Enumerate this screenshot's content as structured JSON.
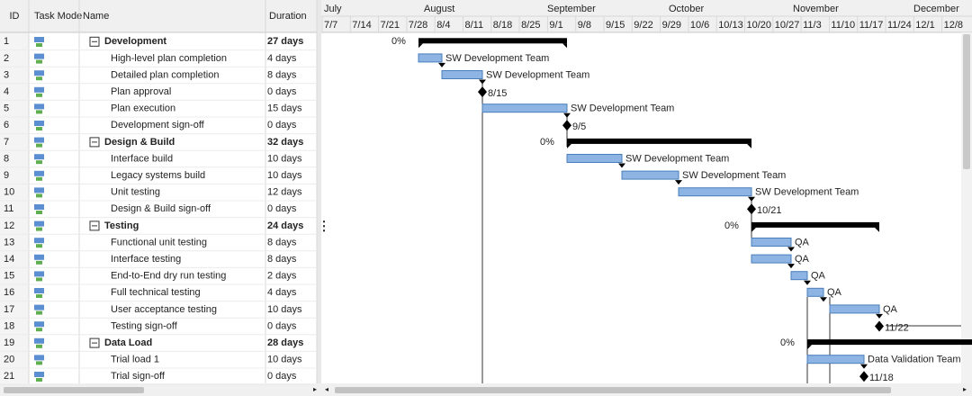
{
  "columns": [
    "ID",
    "Task Mode",
    "Name",
    "Duration"
  ],
  "timeline": {
    "months": [
      "July",
      "August",
      "September",
      "October",
      "November",
      "December"
    ],
    "weeks": [
      "7/7",
      "7/14",
      "7/21",
      "7/28",
      "8/4",
      "8/11",
      "8/18",
      "8/25",
      "9/1",
      "9/8",
      "9/15",
      "9/22",
      "9/29",
      "10/6",
      "10/13",
      "10/20",
      "10/27",
      "11/3",
      "11/10",
      "11/17",
      "11/24",
      "12/1",
      "12/8"
    ]
  },
  "tasks": [
    {
      "id": 1,
      "name": "Development",
      "duration": "27 days",
      "summary": true,
      "bar_label": "0%"
    },
    {
      "id": 2,
      "name": "High-level plan completion",
      "duration": "4 days",
      "bar_label": "SW Development Team"
    },
    {
      "id": 3,
      "name": "Detailed plan completion",
      "duration": "8 days",
      "bar_label": "SW Development Team"
    },
    {
      "id": 4,
      "name": "Plan approval",
      "duration": "0 days",
      "bar_label": "8/15"
    },
    {
      "id": 5,
      "name": "Plan execution",
      "duration": "15 days",
      "bar_label": "SW Development Team"
    },
    {
      "id": 6,
      "name": "Development sign-off",
      "duration": "0 days",
      "bar_label": "9/5"
    },
    {
      "id": 7,
      "name": "Design & Build",
      "duration": "32 days",
      "summary": true,
      "bar_label": "0%"
    },
    {
      "id": 8,
      "name": "Interface build",
      "duration": "10 days",
      "bar_label": "SW Development Team"
    },
    {
      "id": 9,
      "name": "Legacy systems build",
      "duration": "10 days",
      "bar_label": "SW Development Team"
    },
    {
      "id": 10,
      "name": "Unit testing",
      "duration": "12 days",
      "bar_label": "SW Development Team"
    },
    {
      "id": 11,
      "name": "Design & Build sign-off",
      "duration": "0 days",
      "bar_label": "10/21"
    },
    {
      "id": 12,
      "name": "Testing",
      "duration": "24 days",
      "summary": true,
      "bar_label": "0%"
    },
    {
      "id": 13,
      "name": "Functional unit testing",
      "duration": "8 days",
      "bar_label": "QA"
    },
    {
      "id": 14,
      "name": "Interface testing",
      "duration": "8 days",
      "bar_label": "QA"
    },
    {
      "id": 15,
      "name": "End-to-End dry run testing",
      "duration": "2 days",
      "bar_label": "QA"
    },
    {
      "id": 16,
      "name": "Full technical testing",
      "duration": "4 days",
      "bar_label": "QA"
    },
    {
      "id": 17,
      "name": "User acceptance testing",
      "duration": "10 days",
      "bar_label": "QA"
    },
    {
      "id": 18,
      "name": "Testing sign-off",
      "duration": "0 days",
      "bar_label": "11/22"
    },
    {
      "id": 19,
      "name": "Data Load",
      "duration": "28 days",
      "summary": true,
      "bar_label": "0%"
    },
    {
      "id": 20,
      "name": "Trial load 1",
      "duration": "10 days",
      "bar_label": "Data Validation Team"
    },
    {
      "id": 21,
      "name": "Trial sign-off",
      "duration": "0 days",
      "bar_label": "11/18"
    }
  ]
}
